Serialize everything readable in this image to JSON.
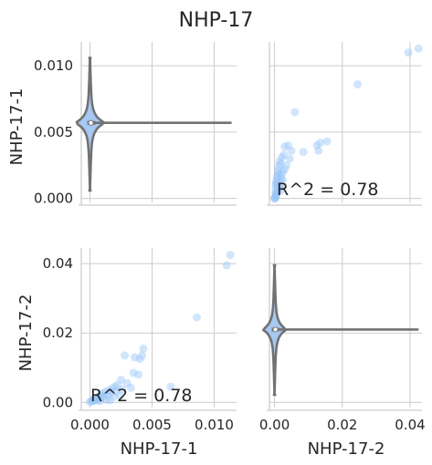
{
  "figure": {
    "title": "NHP-17"
  },
  "colors": {
    "points": "#99c5f8",
    "violin_fill": "#a6c8f2",
    "violin_line": "#727272",
    "grid": "#cccccc",
    "text": "#262626"
  },
  "chart_data": [
    {
      "panel": "top-left",
      "type": "violin",
      "variable": "NHP-17-1",
      "ylabel": "NHP-17-1",
      "xlabel": "",
      "yticks": [
        "0.000",
        "0.005",
        "0.010"
      ],
      "ylim": [
        -0.0003,
        0.0118
      ],
      "xlim": [
        -0.0007,
        0.0118
      ],
      "violin": {
        "center_value": 0.0057,
        "max_extent_value": 0.0106,
        "min_extent_value": 0.0006,
        "median": 0.0057,
        "whisker_to": 0.0114
      }
    },
    {
      "panel": "top-right",
      "type": "scatter",
      "xlabel": "",
      "ylabel": "",
      "xlim": [
        -0.0015,
        0.0435
      ],
      "ylim": [
        -0.0003,
        0.0118
      ],
      "annotation": "R^2 = 0.78",
      "points": [
        [
          0.0425,
          0.0113
        ],
        [
          0.0395,
          0.011
        ],
        [
          0.0245,
          0.0086
        ],
        [
          0.0155,
          0.0043
        ],
        [
          0.0135,
          0.0042
        ],
        [
          0.0125,
          0.004
        ],
        [
          0.013,
          0.0036
        ],
        [
          0.0085,
          0.0035
        ],
        [
          0.006,
          0.0065
        ],
        [
          0.004,
          0.004
        ],
        [
          0.003,
          0.0039
        ],
        [
          0.005,
          0.0036
        ],
        [
          0.0045,
          0.003
        ],
        [
          0.0035,
          0.0025
        ],
        [
          0.003,
          0.0022
        ],
        [
          0.0025,
          0.002
        ],
        [
          0.002,
          0.0018
        ],
        [
          0.002,
          0.0015
        ],
        [
          0.0018,
          0.0012
        ],
        [
          0.0015,
          0.001
        ],
        [
          0.0012,
          0.0008
        ],
        [
          0.001,
          0.0006
        ],
        [
          0.0008,
          0.0005
        ],
        [
          0.0006,
          0.0004
        ],
        [
          0.0005,
          0.0003
        ],
        [
          0.0004,
          0.0002
        ],
        [
          0.0003,
          0.0001
        ],
        [
          0.0002,
          0.0001
        ],
        [
          0.0001,
          0.0
        ],
        [
          0.0,
          0.0
        ],
        [
          0.0015,
          0.0028
        ],
        [
          0.0012,
          0.0024
        ],
        [
          0.001,
          0.0021
        ],
        [
          0.0008,
          0.0017
        ],
        [
          0.0006,
          0.0014
        ],
        [
          0.0005,
          0.0012
        ],
        [
          0.0004,
          0.001
        ],
        [
          0.0003,
          0.0007
        ],
        [
          0.0022,
          0.0031
        ],
        [
          0.0028,
          0.0033
        ],
        [
          0.0018,
          0.0026
        ],
        [
          0.0009,
          0.0016
        ],
        [
          0.0011,
          0.0019
        ],
        [
          0.0007,
          0.0011
        ],
        [
          0.0003,
          0.0004
        ],
        [
          0.0016,
          0.0009
        ],
        [
          0.0024,
          0.0014
        ],
        [
          0.0019,
          0.0006
        ]
      ]
    },
    {
      "panel": "bottom-left",
      "type": "scatter",
      "xlabel": "NHP-17-1",
      "ylabel": "NHP-17-2",
      "xticks": [
        "0.000",
        "0.005",
        "0.010"
      ],
      "yticks": [
        "0.00",
        "0.02",
        "0.04"
      ],
      "xlim": [
        -0.0007,
        0.0118
      ],
      "ylim": [
        -0.0015,
        0.0445
      ],
      "annotation": "R^2 = 0.78",
      "points": [
        [
          0.0113,
          0.0425
        ],
        [
          0.011,
          0.0395
        ],
        [
          0.0086,
          0.0245
        ],
        [
          0.0043,
          0.0155
        ],
        [
          0.0042,
          0.0135
        ],
        [
          0.004,
          0.0125
        ],
        [
          0.0036,
          0.013
        ],
        [
          0.0035,
          0.0085
        ],
        [
          0.0065,
          0.0045
        ],
        [
          0.0028,
          0.0135
        ],
        [
          0.0039,
          0.008
        ],
        [
          0.0025,
          0.0065
        ],
        [
          0.003,
          0.0055
        ],
        [
          0.0022,
          0.005
        ],
        [
          0.002,
          0.0045
        ],
        [
          0.0018,
          0.004
        ],
        [
          0.0015,
          0.0035
        ],
        [
          0.0012,
          0.003
        ],
        [
          0.001,
          0.0025
        ],
        [
          0.0008,
          0.002
        ],
        [
          0.0006,
          0.0015
        ],
        [
          0.0005,
          0.0012
        ],
        [
          0.0004,
          0.001
        ],
        [
          0.0003,
          0.0008
        ],
        [
          0.0002,
          0.0005
        ],
        [
          0.0001,
          0.0003
        ],
        [
          0.0,
          0.0001
        ],
        [
          0.0014,
          0.0022
        ],
        [
          0.0017,
          0.0028
        ],
        [
          0.0021,
          0.0032
        ],
        [
          0.0009,
          0.0012
        ],
        [
          0.0011,
          0.0018
        ],
        [
          0.0007,
          0.0009
        ],
        [
          0.0005,
          0.0006
        ],
        [
          0.0003,
          0.0004
        ],
        [
          0.0026,
          0.0038
        ],
        [
          0.0033,
          0.0042
        ],
        [
          0.0019,
          0.0016
        ],
        [
          0.0013,
          0.0008
        ],
        [
          0.0024,
          0.002
        ],
        [
          0.0016,
          0.0006
        ],
        [
          0.0008,
          0.0004
        ]
      ]
    },
    {
      "panel": "bottom-right",
      "type": "violin",
      "variable": "NHP-17-2",
      "xlabel": "NHP-17-2",
      "ylabel": "",
      "xticks": [
        "0.00",
        "0.02",
        "0.04"
      ],
      "xlim": [
        -0.0015,
        0.0435
      ],
      "ylim": [
        -0.0015,
        0.0445
      ],
      "violin": {
        "center_value": 0.021,
        "max_extent_value": 0.0395,
        "min_extent_value": 0.0022,
        "median": 0.021,
        "whisker_to": 0.0425
      }
    }
  ]
}
